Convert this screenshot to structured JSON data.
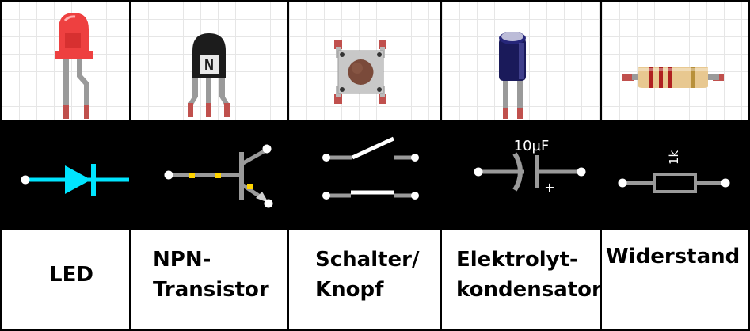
{
  "components": [
    {
      "id": "led",
      "name": "LED"
    },
    {
      "id": "npn",
      "name": "NPN-\nTransistor"
    },
    {
      "id": "switch",
      "name": "Schalter/\nKnopf"
    },
    {
      "id": "capacitor",
      "name": "Elektrolyt-\nkondensator",
      "symbol_value": "10µF",
      "polarity": "+"
    },
    {
      "id": "resistor",
      "name": "Widerstand",
      "symbol_value": "1k"
    }
  ],
  "transistor_marking": "N",
  "colors": {
    "symbol_line": "#00e5ff",
    "wire": "#9a9a9a",
    "pad_yellow": "#ffd400",
    "led_red": "#e83030",
    "lead_red": "#c0504d"
  }
}
